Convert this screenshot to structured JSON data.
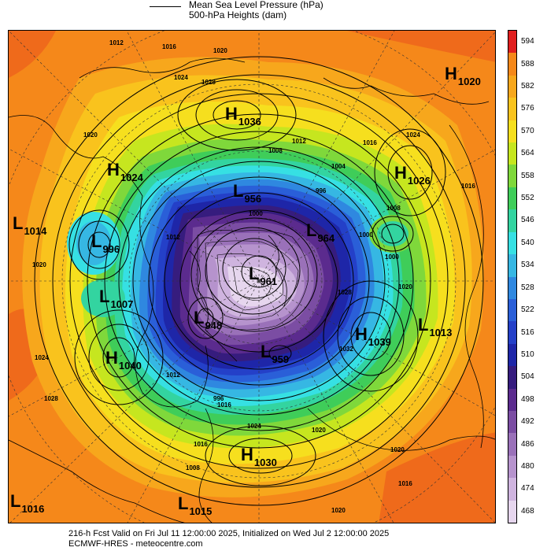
{
  "legend": {
    "mslp_label": "Mean Sea Level Pressure (hPa)",
    "heights_label": "500-hPa Heights (dam)"
  },
  "colorbar": {
    "levels": [
      "594",
      "588",
      "582",
      "576",
      "570",
      "564",
      "558",
      "552",
      "546",
      "540",
      "534",
      "528",
      "522",
      "516",
      "510",
      "504",
      "498",
      "492",
      "486",
      "480",
      "474",
      "468"
    ],
    "colors": [
      "#e01e1e",
      "#f5881a",
      "#f7a71c",
      "#f9c31d",
      "#f6df1e",
      "#c6e61f",
      "#7fd83b",
      "#3fcd59",
      "#33d4a0",
      "#36e0e3",
      "#36b7e3",
      "#2f88e0",
      "#2a5fd8",
      "#2440c8",
      "#1e26a8",
      "#361c7e",
      "#5b2b8e",
      "#7b4da3",
      "#9a71b9",
      "#b693cd",
      "#cfb4df",
      "#e6d6ee"
    ]
  },
  "centers": [
    {
      "type": "H",
      "value": "1020"
    },
    {
      "type": "H",
      "value": "1036"
    },
    {
      "type": "H",
      "value": "1024"
    },
    {
      "type": "H",
      "value": "1026"
    },
    {
      "type": "L",
      "value": "956"
    },
    {
      "type": "L",
      "value": "964"
    },
    {
      "type": "L",
      "value": "1014"
    },
    {
      "type": "L",
      "value": "996"
    },
    {
      "type": "L",
      "value": "961"
    },
    {
      "type": "L",
      "value": "1007"
    },
    {
      "type": "L",
      "value": "948"
    },
    {
      "type": "H",
      "value": "1039"
    },
    {
      "type": "L",
      "value": "1013"
    },
    {
      "type": "H",
      "value": "1040"
    },
    {
      "type": "L",
      "value": "959"
    },
    {
      "type": "H",
      "value": "1030"
    },
    {
      "type": "L",
      "value": "1016"
    },
    {
      "type": "L",
      "value": "1015"
    }
  ],
  "isobar_labels": [
    "1012",
    "1016",
    "1020",
    "1024",
    "1028",
    "1008",
    "1012",
    "1004",
    "996",
    "1000",
    "1016",
    "1024",
    "1016",
    "1020",
    "1012",
    "1020",
    "1008",
    "1000",
    "1020",
    "1028",
    "1032",
    "1024",
    "1028",
    "1012",
    "1016",
    "1024",
    "1020",
    "1020",
    "1016",
    "1020",
    "1016",
    "1008",
    "996",
    "1000"
  ],
  "footer": {
    "line1": "216-h Fcst Valid on Fri Jul 11 12:00:00 2025, Initialized on Wed Jul  2 12:00:00 2025",
    "line2": "ECMWF-HRES  - meteocentre.com"
  }
}
